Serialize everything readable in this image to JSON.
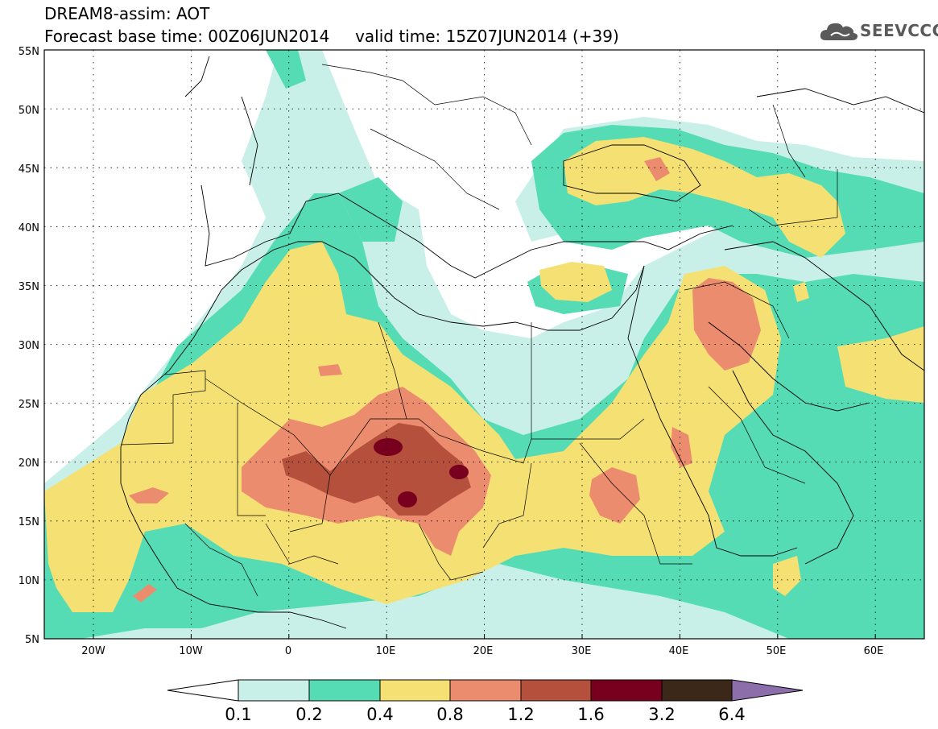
{
  "header": {
    "line1": "DREAM8-assim: AOT",
    "line2": "Forecast base time: 00Z06JUN2014     valid time: 15Z07JUN2014 (+39)"
  },
  "logo": {
    "text": "SEEVCCC",
    "icon": "cloud-icon"
  },
  "map": {
    "lat_labels": [
      "55N",
      "50N",
      "45N",
      "40N",
      "35N",
      "30N",
      "25N",
      "20N",
      "15N",
      "10N",
      "5N"
    ],
    "lon_labels": [
      "20W",
      "10W",
      "0",
      "10E",
      "20E",
      "30E",
      "40E",
      "50E",
      "60E"
    ]
  },
  "colorbar": {
    "labels": [
      "0.1",
      "0.2",
      "0.4",
      "0.8",
      "1.2",
      "1.6",
      "3.2",
      "6.4"
    ],
    "colors": [
      "#c8f0e8",
      "#55dcb4",
      "#f5e173",
      "#eb8c6e",
      "#b4503c",
      "#78001e",
      "#3c2819",
      "#8c6eaa"
    ],
    "under_color": "#ffffff"
  }
}
